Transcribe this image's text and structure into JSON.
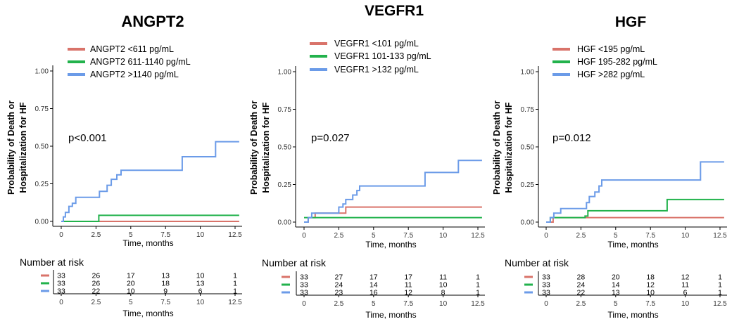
{
  "figure": {
    "risk_title": "Number at risk"
  },
  "chart_data": [
    {
      "type": "line",
      "title": "ANGPT2",
      "xlabel": "Time, months",
      "ylabel": [
        "Probability of Death or",
        "Hospitalization for HF"
      ],
      "xlim": [
        0,
        12.5
      ],
      "ylim": [
        0,
        1
      ],
      "x_ticks": [
        0,
        2.5,
        5,
        7.5,
        10,
        12.5
      ],
      "x_tick_labels": [
        "0",
        "2.5",
        "5",
        "7.5",
        "10",
        "12.5"
      ],
      "y_ticks": [
        0,
        0.25,
        0.5,
        0.75,
        1
      ],
      "y_tick_labels": [
        "0.00",
        "0.25",
        "0.50",
        "0.75",
        "1.00"
      ],
      "pvalue": "p<0.001",
      "series": [
        {
          "name": "ANGPT2 <611 pg/mL",
          "color": "#d9736a",
          "x": [
            0,
            12.8
          ],
          "y": [
            0,
            0
          ]
        },
        {
          "name": "ANGPT2 611-1140 pg/mL",
          "color": "#22b24c",
          "x": [
            0,
            2.7,
            12.8
          ],
          "y": [
            0,
            0.04,
            0.04
          ]
        },
        {
          "name": "ANGPT2 >1140 pg/mL",
          "color": "#6b9be8",
          "x": [
            0,
            0.15,
            0.3,
            0.55,
            0.8,
            1.05,
            2.75,
            3.0,
            3.3,
            3.6,
            4.0,
            4.3,
            8.7,
            11.1,
            12.8
          ],
          "y": [
            0,
            0.03,
            0.06,
            0.1,
            0.12,
            0.16,
            0.2,
            0.2,
            0.24,
            0.28,
            0.31,
            0.34,
            0.43,
            0.53,
            0.53
          ]
        }
      ],
      "risk_table": {
        "x": [
          0,
          2.5,
          5,
          7.5,
          10,
          12.5
        ],
        "rows": [
          {
            "color": "#d9736a",
            "values": [
              "33",
              "26",
              "17",
              "13",
              "10",
              "1"
            ]
          },
          {
            "color": "#22b24c",
            "values": [
              "33",
              "26",
              "20",
              "18",
              "13",
              "1"
            ]
          },
          {
            "color": "#6b9be8",
            "values": [
              "33",
              "22",
              "10",
              "9",
              "6",
              "1"
            ]
          }
        ],
        "xlabel": "Time, months"
      }
    },
    {
      "type": "line",
      "title": "VEGFR1",
      "xlabel": "Time, months",
      "ylabel": [
        "Probability of Death or",
        "Hospitalization for HF"
      ],
      "xlim": [
        0,
        12.5
      ],
      "ylim": [
        0,
        1
      ],
      "x_ticks": [
        0,
        2.5,
        5,
        7.5,
        10,
        12.5
      ],
      "x_tick_labels": [
        "0",
        "2.5",
        "5",
        "7.5",
        "10",
        "12.5"
      ],
      "y_ticks": [
        0,
        0.25,
        0.5,
        0.75,
        1
      ],
      "y_tick_labels": [
        "0.00",
        "0.25",
        "0.50",
        "0.75",
        "1.00"
      ],
      "pvalue": "p=0.027",
      "series": [
        {
          "name": "VEGFR1 <101 pg/mL",
          "color": "#d9736a",
          "x": [
            0,
            0.3,
            0.8,
            2.8,
            3.0,
            12.8
          ],
          "y": [
            0,
            0.03,
            0.06,
            0.06,
            0.1,
            0.1
          ]
        },
        {
          "name": "VEGFR1 101-133 pg/mL",
          "color": "#22b24c",
          "x": [
            0,
            12.8
          ],
          "y": [
            0.03,
            0.03
          ]
        },
        {
          "name": "VEGFR1 >132 pg/mL",
          "color": "#6b9be8",
          "x": [
            0,
            0.3,
            0.55,
            2.5,
            2.8,
            3.0,
            3.5,
            3.8,
            4.0,
            8.7,
            11.1,
            12.8
          ],
          "y": [
            0,
            0.03,
            0.06,
            0.1,
            0.12,
            0.15,
            0.18,
            0.21,
            0.24,
            0.33,
            0.41,
            0.41
          ]
        }
      ],
      "risk_table": {
        "x": [
          0,
          2.5,
          5,
          7.5,
          10,
          12.5
        ],
        "rows": [
          {
            "color": "#d9736a",
            "values": [
              "33",
              "27",
              "17",
              "17",
              "11",
              "1"
            ]
          },
          {
            "color": "#22b24c",
            "values": [
              "33",
              "24",
              "14",
              "11",
              "10",
              "1"
            ]
          },
          {
            "color": "#6b9be8",
            "values": [
              "33",
              "23",
              "16",
              "12",
              "8",
              "1"
            ]
          }
        ],
        "xlabel": "Time, months"
      }
    },
    {
      "type": "line",
      "title": "HGF",
      "xlabel": "Time, months",
      "ylabel": [
        "Probability of Death or",
        "Hospitalization for HF"
      ],
      "xlim": [
        0,
        12.5
      ],
      "ylim": [
        0,
        1
      ],
      "x_ticks": [
        0,
        2.5,
        5,
        7.5,
        10,
        12.5
      ],
      "x_tick_labels": [
        "0",
        "2.5",
        "5",
        "7.5",
        "10",
        "12.5"
      ],
      "y_ticks": [
        0,
        0.25,
        0.5,
        0.75,
        1
      ],
      "y_tick_labels": [
        "0.00",
        "0.25",
        "0.50",
        "0.75",
        "1.00"
      ],
      "pvalue": "p=0.012",
      "series": [
        {
          "name": "HGF <195 pg/mL",
          "color": "#d9736a",
          "x": [
            0,
            0.5,
            12.8
          ],
          "y": [
            0,
            0.03,
            0.03
          ]
        },
        {
          "name": "HGF 195-282 pg/mL",
          "color": "#22b24c",
          "x": [
            0,
            0.3,
            2.8,
            3.0,
            8.7,
            12.8
          ],
          "y": [
            0,
            0.03,
            0.04,
            0.075,
            0.15,
            0.15
          ]
        },
        {
          "name": "HGF >282 pg/mL",
          "color": "#6b9be8",
          "x": [
            0,
            0.3,
            0.55,
            0.8,
            1.05,
            2.75,
            2.9,
            3.1,
            3.5,
            3.8,
            4.0,
            11.1,
            12.8
          ],
          "y": [
            0,
            0.03,
            0.06,
            0.06,
            0.09,
            0.09,
            0.13,
            0.17,
            0.2,
            0.24,
            0.28,
            0.4,
            0.4
          ]
        }
      ],
      "risk_table": {
        "x": [
          0,
          2.5,
          5,
          7.5,
          10,
          12.5
        ],
        "rows": [
          {
            "color": "#d9736a",
            "values": [
              "33",
              "28",
              "20",
              "18",
              "12",
              "1"
            ]
          },
          {
            "color": "#22b24c",
            "values": [
              "33",
              "24",
              "14",
              "12",
              "11",
              "1"
            ]
          },
          {
            "color": "#6b9be8",
            "values": [
              "33",
              "22",
              "13",
              "10",
              "6",
              "1"
            ]
          }
        ],
        "xlabel": "Time, months"
      }
    }
  ]
}
